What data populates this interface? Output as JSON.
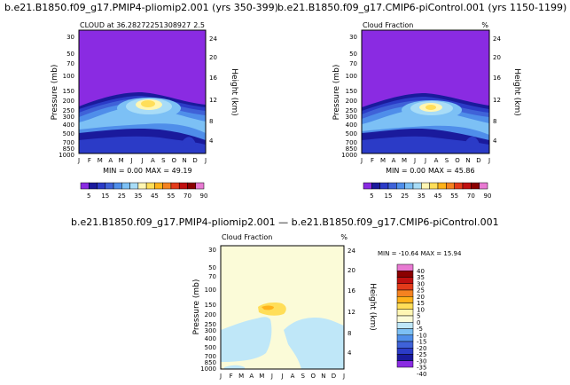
{
  "colors": {
    "abs_scale": [
      "#8a2be2",
      "#1a1a9c",
      "#2b3bc7",
      "#3f62d8",
      "#4f8eea",
      "#7cc0f5",
      "#a8dcf7",
      "#fff6b3",
      "#ffde59",
      "#ffb21a",
      "#f58220",
      "#e33b1a",
      "#c01010",
      "#8b0000",
      "#e87ad2"
    ],
    "diff_scale": [
      "#8a2be2",
      "#1a1a9c",
      "#2b3bc7",
      "#3f62d8",
      "#4f8eea",
      "#7cc0f5",
      "#bfe7f8",
      "#fbfbd8",
      "#fff6b3",
      "#ffde59",
      "#ffb21a",
      "#f58220",
      "#e33b1a",
      "#c01010",
      "#8b0000",
      "#e87ad2"
    ]
  },
  "chart_data": [
    {
      "type": "heatmap",
      "title": "b.e21.B1850.f09_g17.PMIP4-pliomip2.001 (yrs 350-399)",
      "subtitle_left": "CLOUD at 36.28272251308927",
      "subtitle_right": "2.5",
      "xlabel": "",
      "ylabel": "Pressure (mb)",
      "ylabel_right": "Height (km)",
      "x_ticks": [
        "J",
        "F",
        "M",
        "A",
        "M",
        "J",
        "J",
        "A",
        "S",
        "O",
        "N",
        "D",
        "J"
      ],
      "y_ticks": [
        "30",
        "50",
        "70",
        "100",
        "150",
        "200",
        "250",
        "300",
        "400",
        "500",
        "700",
        "850",
        "1000"
      ],
      "y_ticks_right": [
        "24",
        "20",
        "16",
        "12",
        "8",
        "4"
      ],
      "stats": {
        "min_label": "MIN =",
        "min": "0.00",
        "max_label": "MAX =",
        "max": "49.19"
      },
      "colorbar_labels": [
        "5",
        "15",
        "25",
        "35",
        "45",
        "55",
        "70",
        "90"
      ]
    },
    {
      "type": "heatmap",
      "title": "b.e21.B1850.f09_g17.CMIP6-piControl.001 (yrs 1150-1199)",
      "subtitle_left": "Cloud Fraction",
      "subtitle_right": "%",
      "xlabel": "",
      "ylabel": "Pressure (mb)",
      "ylabel_right": "Height (km)",
      "x_ticks": [
        "J",
        "F",
        "M",
        "A",
        "M",
        "J",
        "J",
        "A",
        "S",
        "O",
        "N",
        "D",
        "J"
      ],
      "y_ticks": [
        "30",
        "50",
        "70",
        "100",
        "150",
        "200",
        "250",
        "300",
        "400",
        "500",
        "700",
        "850",
        "1000"
      ],
      "y_ticks_right": [
        "24",
        "20",
        "16",
        "12",
        "8",
        "4"
      ],
      "stats": {
        "min_label": "MIN =",
        "min": "0.00",
        "max_label": "MAX =",
        "max": "45.86"
      },
      "colorbar_labels": [
        "5",
        "15",
        "25",
        "35",
        "45",
        "55",
        "70",
        "90"
      ]
    },
    {
      "type": "heatmap",
      "title": "b.e21.B1850.f09_g17.PMIP4-pliomip2.001 — b.e21.B1850.f09_g17.CMIP6-piControl.001",
      "subtitle_left": "Cloud Fraction",
      "subtitle_right": "%",
      "xlabel": "",
      "ylabel": "Pressure (mb)",
      "ylabel_right": "Height (km)",
      "x_ticks": [
        "J",
        "F",
        "M",
        "A",
        "M",
        "J",
        "J",
        "A",
        "S",
        "O",
        "N",
        "D",
        "J"
      ],
      "y_ticks": [
        "30",
        "50",
        "70",
        "100",
        "150",
        "200",
        "250",
        "300",
        "400",
        "500",
        "700",
        "850",
        "1000"
      ],
      "y_ticks_right": [
        "24",
        "20",
        "16",
        "12",
        "8",
        "4"
      ],
      "stats_text": "MIN = -10.64  MAX =  15.94",
      "colorbar_labels": [
        "40",
        "35",
        "30",
        "25",
        "20",
        "15",
        "10",
        "5",
        "0",
        "-5",
        "-10",
        "-15",
        "-20",
        "-25",
        "-30",
        "-35",
        "-40"
      ]
    }
  ]
}
